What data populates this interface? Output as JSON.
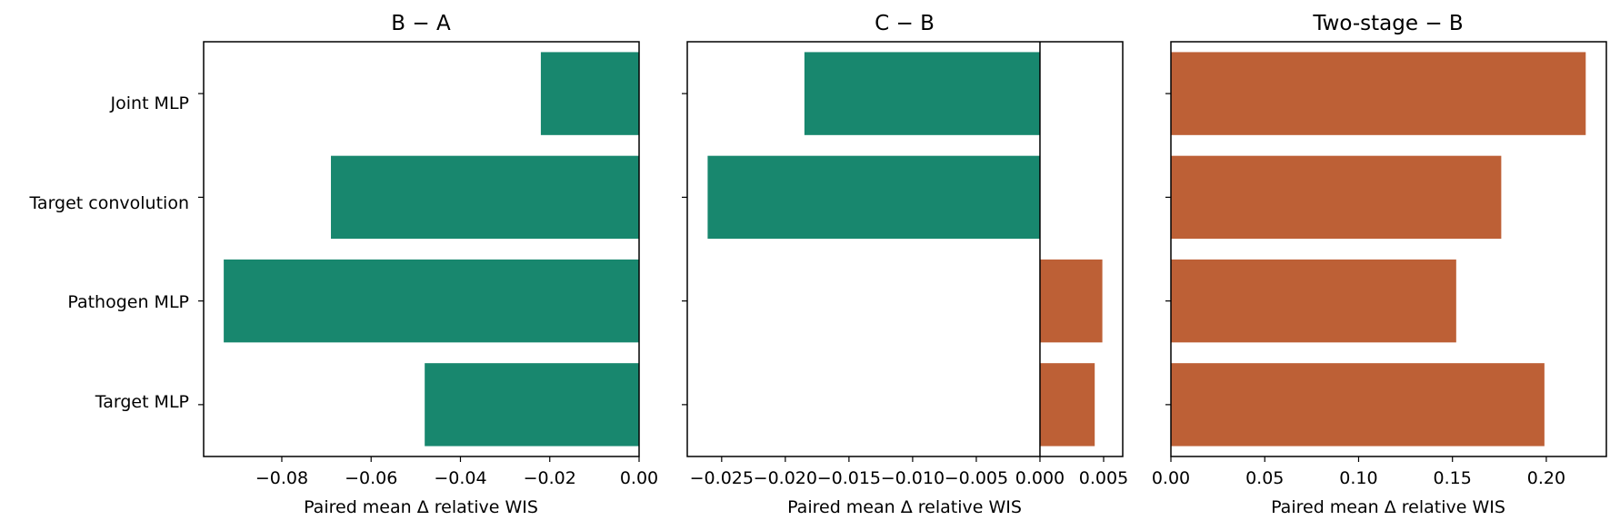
{
  "colors": {
    "negative": "#18876e",
    "positive": "#bd6036",
    "axis": "#000000"
  },
  "categories": [
    "Joint MLP",
    "Target convolution",
    "Pathogen MLP",
    "Target MLP"
  ],
  "chart_data": [
    {
      "type": "bar",
      "orientation": "horizontal",
      "title": "B − A",
      "xlabel": "Paired mean Δ relative WIS",
      "ylabel": "",
      "categories": [
        "Joint MLP",
        "Target convolution",
        "Pathogen MLP",
        "Target MLP"
      ],
      "values": [
        -0.022,
        -0.069,
        -0.093,
        -0.048
      ],
      "xlim": [
        -0.0975,
        0.0
      ],
      "xticks": [
        -0.08,
        -0.06,
        -0.04,
        -0.02,
        0.0
      ],
      "xtick_labels": [
        "−0.08",
        "−0.06",
        "−0.04",
        "−0.02",
        "0.00"
      ],
      "grid": false
    },
    {
      "type": "bar",
      "orientation": "horizontal",
      "title": "C − B",
      "xlabel": "Paired mean Δ relative WIS",
      "ylabel": "",
      "categories": [
        "Joint MLP",
        "Target convolution",
        "Pathogen MLP",
        "Target MLP"
      ],
      "values": [
        -0.0185,
        -0.0261,
        0.0049,
        0.0043
      ],
      "xlim": [
        -0.0277,
        0.0065
      ],
      "xticks": [
        -0.025,
        -0.02,
        -0.015,
        -0.01,
        -0.005,
        0.0,
        0.005
      ],
      "xtick_labels": [
        "−0.025",
        "−0.020",
        "−0.015",
        "−0.010",
        "−0.005",
        "0.000",
        "0.005"
      ],
      "grid": false
    },
    {
      "type": "bar",
      "orientation": "horizontal",
      "title": "Two-stage − B",
      "xlabel": "Paired mean Δ relative WIS",
      "ylabel": "",
      "categories": [
        "Joint MLP",
        "Target convolution",
        "Pathogen MLP",
        "Target MLP"
      ],
      "values": [
        0.221,
        0.176,
        0.152,
        0.199
      ],
      "xlim": [
        0.0,
        0.232
      ],
      "xticks": [
        0.0,
        0.05,
        0.1,
        0.15,
        0.2
      ],
      "xtick_labels": [
        "0.00",
        "0.05",
        "0.10",
        "0.15",
        "0.20"
      ],
      "grid": false
    }
  ]
}
